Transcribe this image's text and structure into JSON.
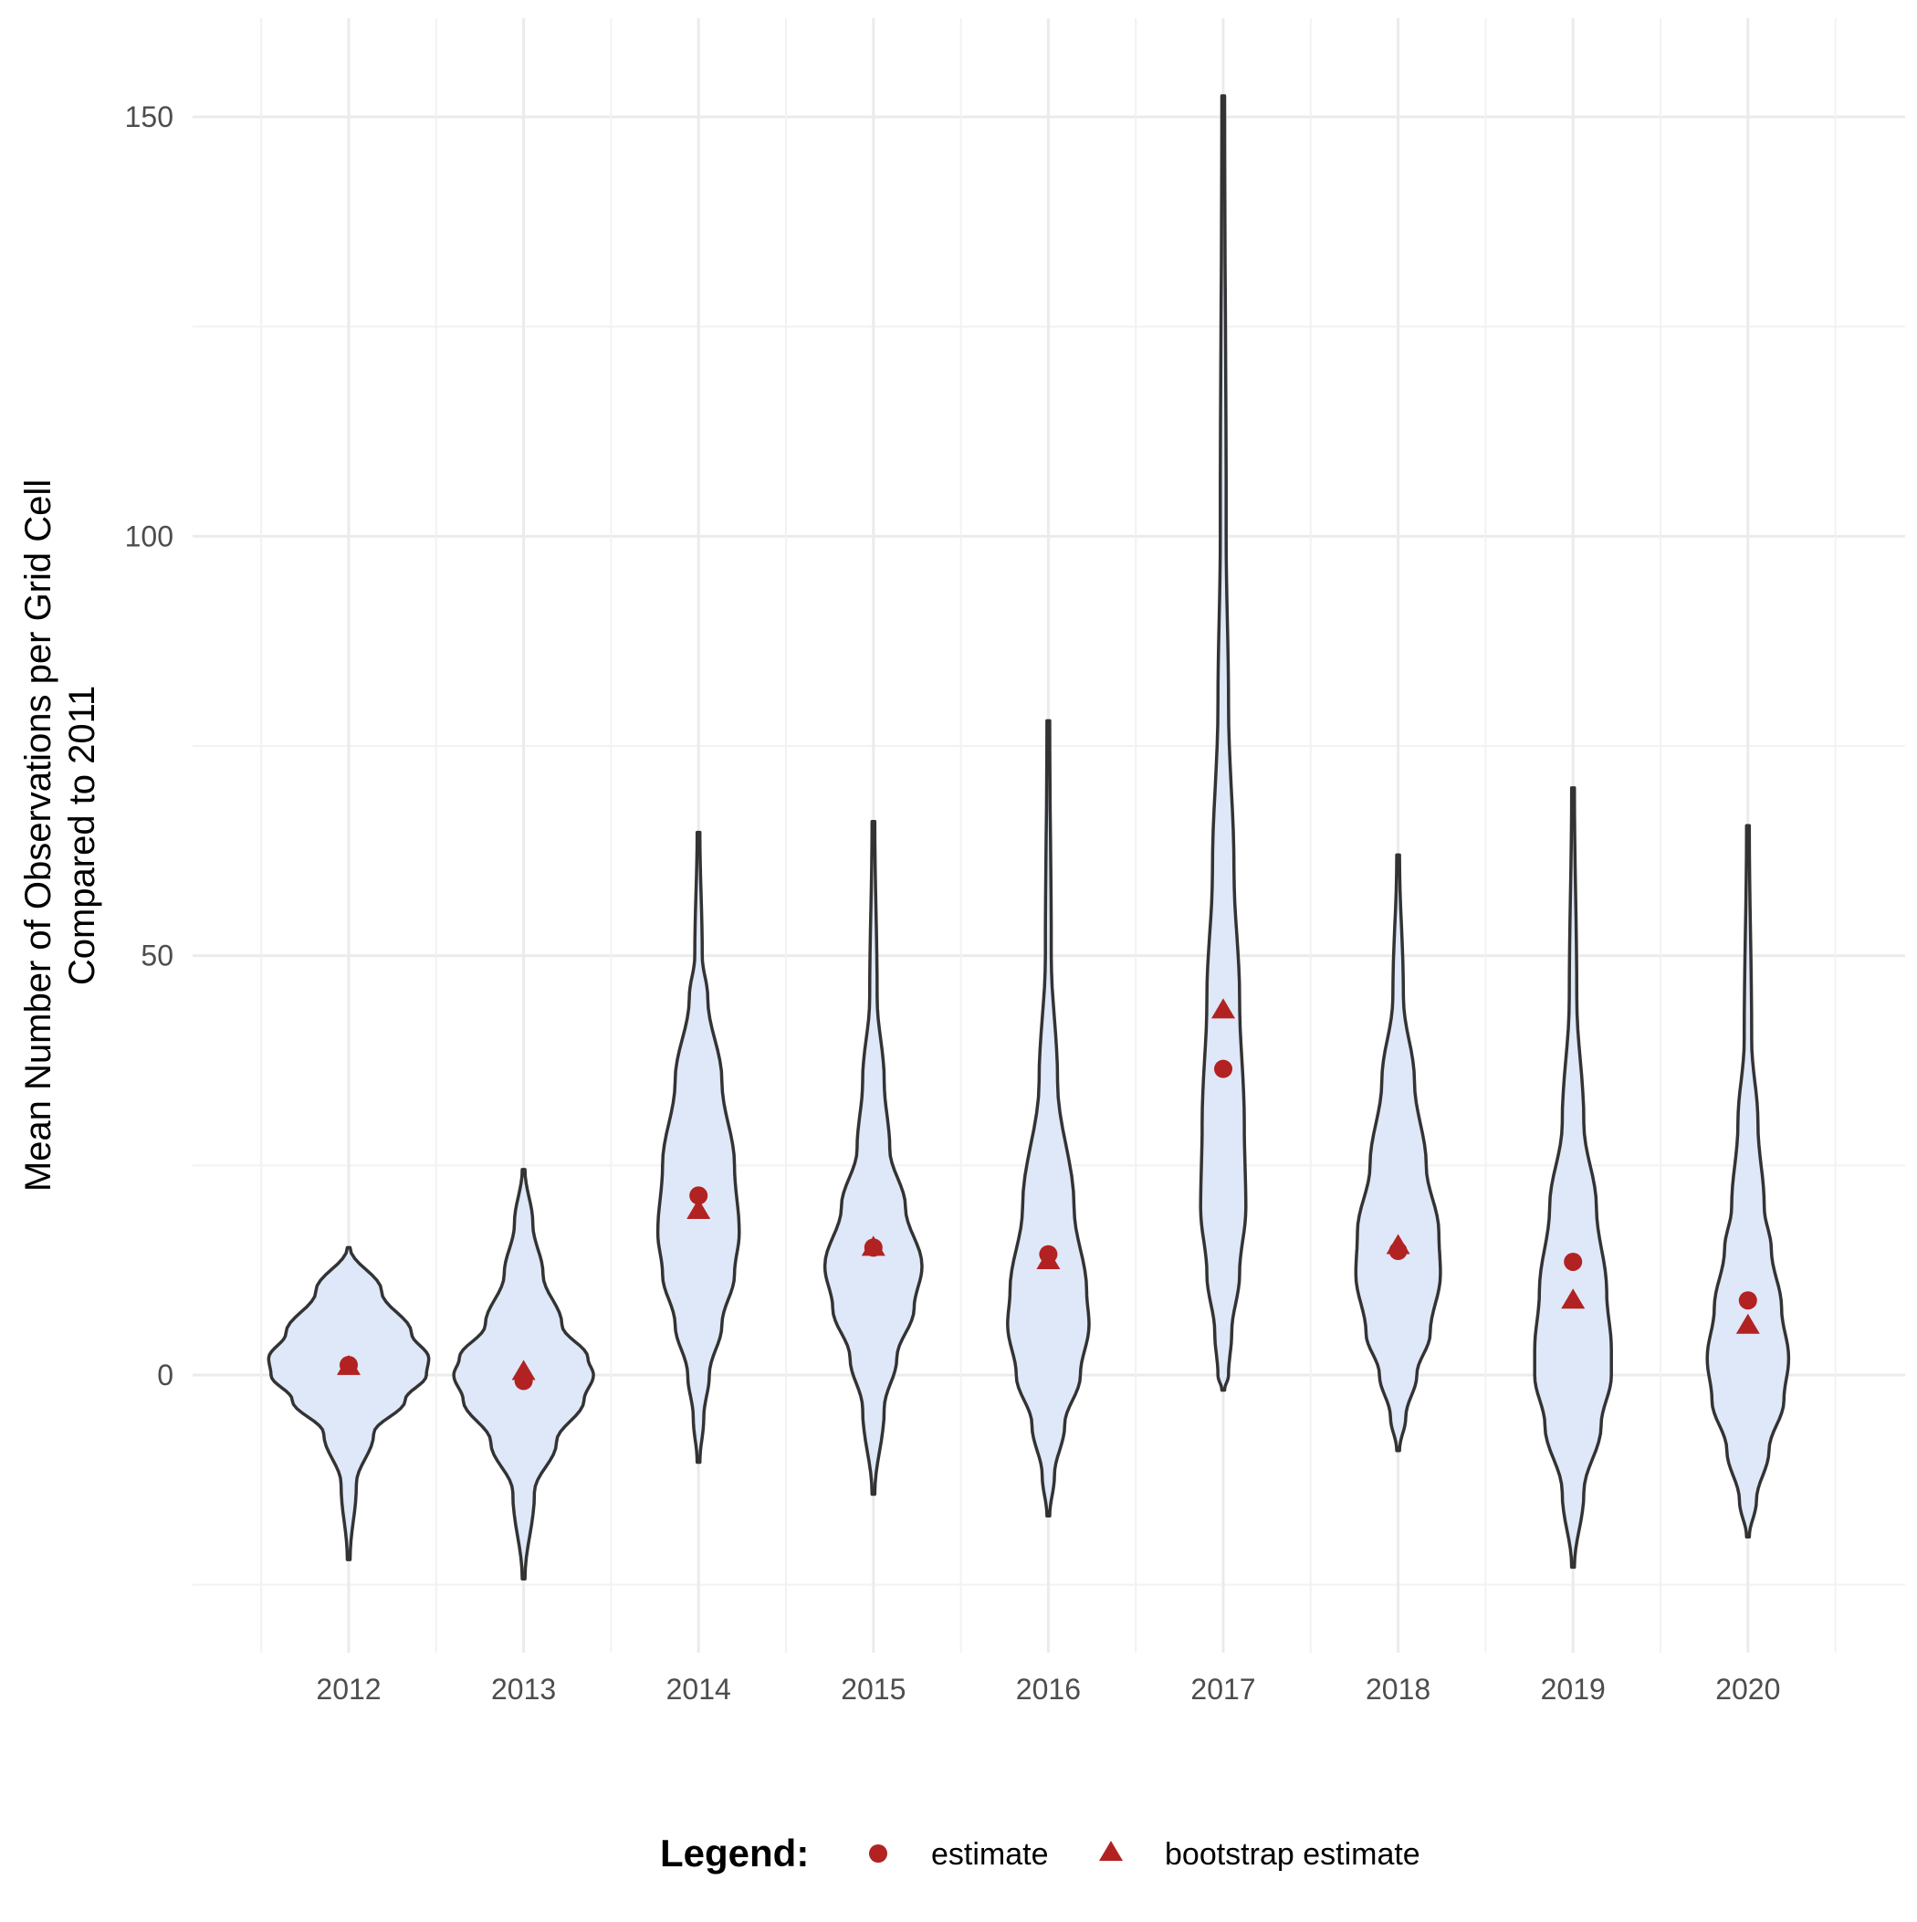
{
  "chart_data": {
    "type": "violin",
    "title": "",
    "xlabel": "",
    "ylabel_lines": [
      "Mean Number of Observations per Grid Cell",
      "Compared to 2011"
    ],
    "ylim": [
      -33,
      157
    ],
    "yticks": [
      0,
      50,
      100,
      150
    ],
    "yminor": [
      -25,
      25,
      75,
      125
    ],
    "categories": [
      "2012",
      "2013",
      "2014",
      "2015",
      "2016",
      "2017",
      "2018",
      "2019",
      "2020"
    ],
    "grid": true,
    "colors": {
      "violin_fill": "#dfe8f8",
      "violin_stroke": "#333333",
      "point": "#b22222",
      "grid": "#ebebeb"
    },
    "series": [
      {
        "name": "estimate",
        "shape": "circle",
        "values": [
          1.2,
          -0.7,
          21.4,
          15.2,
          14.4,
          36.5,
          14.8,
          13.5,
          8.9
        ]
      },
      {
        "name": "bootstrap estimate",
        "shape": "triangle",
        "values": [
          1.0,
          0.4,
          19.6,
          15.2,
          13.6,
          43.5,
          15.4,
          8.9,
          5.9
        ]
      }
    ],
    "violins": [
      {
        "category": "2012",
        "density": [
          [
            15.2,
            0
          ],
          [
            10,
            0.4
          ],
          [
            5,
            0.78
          ],
          [
            2,
            1
          ],
          [
            0,
            0.97
          ],
          [
            -3,
            0.7
          ],
          [
            -7,
            0.3
          ],
          [
            -13,
            0.08
          ],
          [
            -22,
            0
          ]
        ]
      },
      {
        "category": "2013",
        "density": [
          [
            24.5,
            0
          ],
          [
            18,
            0.1
          ],
          [
            12,
            0.23
          ],
          [
            6,
            0.47
          ],
          [
            2,
            0.8
          ],
          [
            0,
            0.87
          ],
          [
            -3,
            0.75
          ],
          [
            -8,
            0.4
          ],
          [
            -14,
            0.12
          ],
          [
            -24.3,
            0
          ]
        ]
      },
      {
        "category": "2014",
        "density": [
          [
            64.7,
            0
          ],
          [
            50,
            0.03
          ],
          [
            45,
            0.1
          ],
          [
            35,
            0.28
          ],
          [
            25,
            0.44
          ],
          [
            17,
            0.5
          ],
          [
            12,
            0.44
          ],
          [
            6,
            0.28
          ],
          [
            0,
            0.12
          ],
          [
            -5,
            0.05
          ],
          [
            -10.4,
            0
          ]
        ]
      },
      {
        "category": "2015",
        "density": [
          [
            66,
            0
          ],
          [
            45,
            0.03
          ],
          [
            35,
            0.12
          ],
          [
            27,
            0.19
          ],
          [
            20,
            0.39
          ],
          [
            13,
            0.6
          ],
          [
            8,
            0.5
          ],
          [
            2,
            0.28
          ],
          [
            -4,
            0.12
          ],
          [
            -14.2,
            0
          ]
        ]
      },
      {
        "category": "2016",
        "density": [
          [
            78,
            0
          ],
          [
            50,
            0.02
          ],
          [
            35,
            0.1
          ],
          [
            20,
            0.31
          ],
          [
            10,
            0.47
          ],
          [
            6,
            0.5
          ],
          [
            0,
            0.39
          ],
          [
            -6,
            0.19
          ],
          [
            -12,
            0.06
          ],
          [
            -16.8,
            0
          ]
        ]
      },
      {
        "category": "2017",
        "density": [
          [
            152.5,
            0
          ],
          [
            100,
            0.02
          ],
          [
            80,
            0.05
          ],
          [
            60,
            0.12
          ],
          [
            45,
            0.19
          ],
          [
            30,
            0.25
          ],
          [
            20,
            0.27
          ],
          [
            12,
            0.19
          ],
          [
            5,
            0.09
          ],
          [
            0,
            0.05
          ],
          [
            -1.8,
            0
          ]
        ]
      },
      {
        "category": "2018",
        "density": [
          [
            62,
            0
          ],
          [
            45,
            0.05
          ],
          [
            35,
            0.19
          ],
          [
            25,
            0.34
          ],
          [
            17,
            0.5
          ],
          [
            12,
            0.52
          ],
          [
            5,
            0.39
          ],
          [
            0,
            0.22
          ],
          [
            -5,
            0.08
          ],
          [
            -9,
            0
          ]
        ]
      },
      {
        "category": "2019",
        "density": [
          [
            70,
            0
          ],
          [
            45,
            0.03
          ],
          [
            30,
            0.12
          ],
          [
            20,
            0.28
          ],
          [
            10,
            0.41
          ],
          [
            3,
            0.47
          ],
          [
            0,
            0.47
          ],
          [
            -6,
            0.34
          ],
          [
            -14,
            0.12
          ],
          [
            -22.9,
            0
          ]
        ]
      },
      {
        "category": "2020",
        "density": [
          [
            65.5,
            0
          ],
          [
            40,
            0.03
          ],
          [
            30,
            0.11
          ],
          [
            20,
            0.19
          ],
          [
            15,
            0.28
          ],
          [
            8,
            0.41
          ],
          [
            2,
            0.5
          ],
          [
            -3,
            0.44
          ],
          [
            -9,
            0.25
          ],
          [
            -15,
            0.09
          ],
          [
            -19.3,
            0
          ]
        ]
      }
    ],
    "legend": {
      "title": "Legend:",
      "placement": "bottom"
    }
  }
}
